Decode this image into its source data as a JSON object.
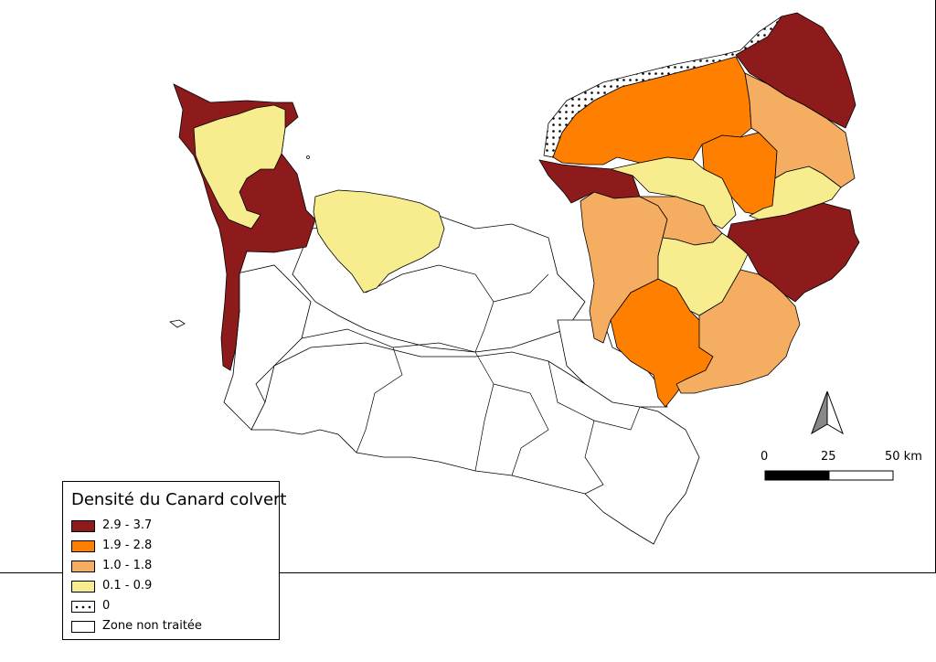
{
  "legend": {
    "title": "Densité du Canard colvert",
    "items": [
      {
        "label": "2.9 - 3.7",
        "color": "#8e1b1b",
        "pattern": "solid"
      },
      {
        "label": "1.9 - 2.8",
        "color": "#ff7f00",
        "pattern": "solid"
      },
      {
        "label": "1.0 - 1.8",
        "color": "#f5ad62",
        "pattern": "solid"
      },
      {
        "label": "0.1 - 0.9",
        "color": "#f7ed8f",
        "pattern": "solid"
      },
      {
        "label": "0",
        "color": "#ffffff",
        "pattern": "dots"
      },
      {
        "label": "Zone non traitée",
        "color": "#ffffff",
        "pattern": "none"
      }
    ]
  },
  "scale_bar": {
    "labels": [
      "0",
      "25",
      "50 km"
    ],
    "values_km": [
      0,
      25,
      50
    ]
  },
  "north_arrow": {
    "icon": "north-arrow-icon"
  },
  "map": {
    "region_icon": "normandy-map"
  }
}
